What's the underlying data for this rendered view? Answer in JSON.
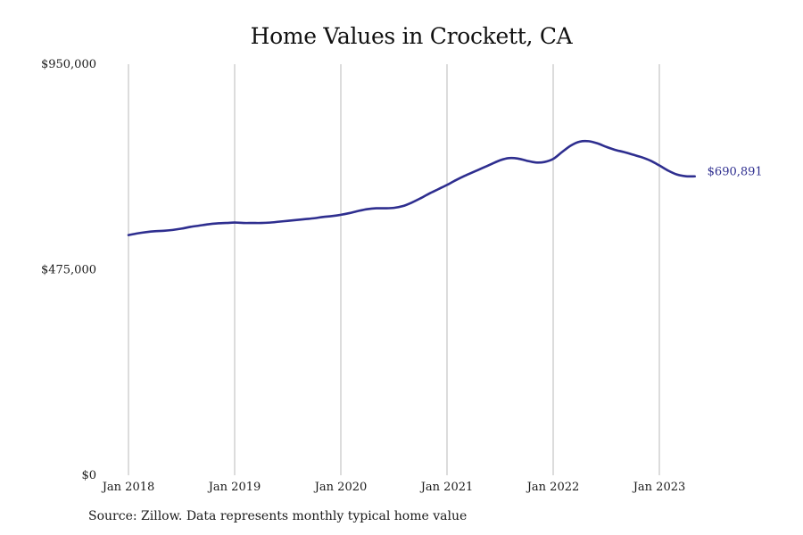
{
  "chart_data": {
    "type": "line",
    "title": "Home Values in Crockett, CA",
    "xlabel": "",
    "ylabel": "",
    "x_tick_labels": [
      "Jan 2018",
      "Jan 2019",
      "Jan 2020",
      "Jan 2021",
      "Jan 2022",
      "Jan 2023"
    ],
    "y_tick_labels": [
      "$950,000",
      "$475,000",
      "$0"
    ],
    "y_ticks": [
      950000,
      475000,
      0
    ],
    "ylim": [
      0,
      950000
    ],
    "xlim": [
      "2018-01",
      "2023-12"
    ],
    "grid": "vertical lines at each January",
    "line_color": "#2e2e8f",
    "last_value_label": "$690,891",
    "series": [
      {
        "x": [
          "2018-01",
          "2018-02",
          "2018-03",
          "2018-04",
          "2018-05",
          "2018-06",
          "2018-07",
          "2018-08",
          "2018-09",
          "2018-10",
          "2018-11",
          "2018-12",
          "2019-01",
          "2019-02",
          "2019-03",
          "2019-04",
          "2019-05",
          "2019-06",
          "2019-07",
          "2019-08",
          "2019-09",
          "2019-10",
          "2019-11",
          "2019-12",
          "2020-01",
          "2020-02",
          "2020-03",
          "2020-04",
          "2020-05",
          "2020-06",
          "2020-07",
          "2020-08",
          "2020-09",
          "2020-10",
          "2020-11",
          "2020-12",
          "2021-01",
          "2021-02",
          "2021-03",
          "2021-04",
          "2021-05",
          "2021-06",
          "2021-07",
          "2021-08",
          "2021-09",
          "2021-10",
          "2021-11",
          "2021-12",
          "2022-01",
          "2022-02",
          "2022-03",
          "2022-04",
          "2022-05",
          "2022-06",
          "2022-07",
          "2022-08",
          "2022-09",
          "2022-10",
          "2022-11",
          "2022-12",
          "2023-01",
          "2023-02",
          "2023-03",
          "2023-04",
          "2023-05"
        ],
        "values": [
          555000,
          559000,
          562000,
          564000,
          565000,
          567000,
          570000,
          574000,
          577000,
          580000,
          582000,
          583000,
          584000,
          583000,
          583000,
          583000,
          584000,
          586000,
          588000,
          590000,
          592000,
          594000,
          597000,
          599000,
          602000,
          606000,
          611000,
          615000,
          617000,
          617000,
          618000,
          622000,
          630000,
          640000,
          651000,
          661000,
          671000,
          682000,
          692000,
          701000,
          710000,
          719000,
          728000,
          733000,
          732000,
          727000,
          723000,
          724000,
          731000,
          747000,
          762000,
          771000,
          772000,
          767000,
          759000,
          752000,
          747000,
          741000,
          735000,
          727000,
          716000,
          704000,
          695000,
          691000,
          690891
        ]
      }
    ]
  },
  "footer": {
    "source": "Source: Zillow. Data represents monthly typical home value"
  }
}
